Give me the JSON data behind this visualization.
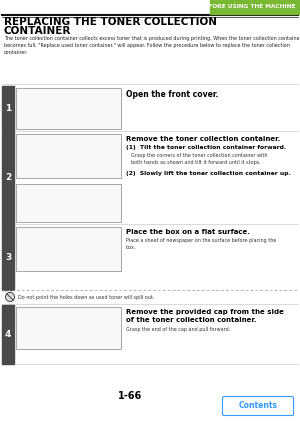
{
  "bg_color": "#ffffff",
  "header_bar_color": "#78b833",
  "header_text": "BEFORE USING THE MACHINE",
  "header_text_color": "#ffffff",
  "title_line1": "REPLACING THE TONER COLLECTION",
  "title_line2": "CONTAINER",
  "title_color": "#000000",
  "intro_text": "The toner collection container collects excess toner that is produced during printing. When the toner collection container\nbecomes full, \"Replace used toner container.\" will appear. Follow the procedure below to replace the toner collection\ncontainer.",
  "step1_main": "Open the front cover.",
  "step2_main": "Remove the toner collection container.",
  "step2_sub1_bold": "Tilt the toner collection container forward.",
  "step2_sub1_detail": "Grasp the corners of the toner collection container with\nboth hands as shown and tilt it forward until it stops.",
  "step2_sub2_bold": "Slowly lift the toner collection container up.",
  "step3_main": "Place the box on a flat surface.",
  "step3_detail": "Place a sheet of newspaper on the surface before placing the\nbox.",
  "step3_note": "Do not point the holes down as used toner will spill out.",
  "step4_main": "Remove the provided cap from the side\nof the toner collection container.",
  "step4_detail": "Grasp the end of the cap and pull forward.",
  "footer_page": "1-66",
  "footer_btn": "Contents",
  "footer_btn_color": "#3399ff",
  "step_bar_color": "#4a4a4a",
  "step_num_color": "#ffffff",
  "img_border_color": "#999999",
  "img_bg_color": "#f8f8f8",
  "line_color": "#333333",
  "sep_color": "#cccccc"
}
